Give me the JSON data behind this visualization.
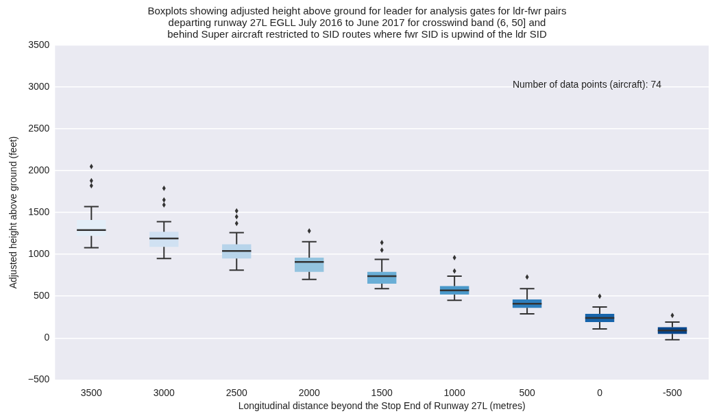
{
  "chart_data": {
    "type": "box",
    "title": "Boxplots showing adjusted height above ground for leader for analysis gates for ldr-fwr pairs\ndeparting runway 27L EGLL July 2016 to June 2017 for crosswind band (6, 50] and\nbehind Super aircraft restricted to SID routes where fwr SID is upwind of the ldr SID",
    "xlabel": "Longitudinal distance beyond the Stop End of Runway 27L (metres)",
    "ylabel": "Adjusted height above ground (feet)",
    "annotations": [
      "Number of data points (aircraft): 74"
    ],
    "categories": [
      "3500",
      "3000",
      "2500",
      "2000",
      "1500",
      "1000",
      "500",
      "0",
      "-500"
    ],
    "colors": [
      "#e3eef8",
      "#d0e1f2",
      "#b7d4ea",
      "#94c4df",
      "#6aaed6",
      "#4a98c9",
      "#2e7ebc",
      "#1764ab",
      "#08468b"
    ],
    "boxes": [
      {
        "low": 1080,
        "q1": 1220,
        "median": 1290,
        "q3": 1410,
        "high": 1570,
        "outliers": [
          1820,
          1880,
          2050
        ]
      },
      {
        "low": 950,
        "q1": 1090,
        "median": 1190,
        "q3": 1270,
        "high": 1390,
        "outliers": [
          1590,
          1650,
          1790
        ]
      },
      {
        "low": 810,
        "q1": 950,
        "median": 1040,
        "q3": 1120,
        "high": 1260,
        "outliers": [
          1370,
          1450,
          1520
        ]
      },
      {
        "low": 700,
        "q1": 790,
        "median": 910,
        "q3": 960,
        "high": 1150,
        "outliers": [
          1280
        ]
      },
      {
        "low": 590,
        "q1": 650,
        "median": 740,
        "q3": 790,
        "high": 940,
        "outliers": [
          1050,
          1140
        ]
      },
      {
        "low": 450,
        "q1": 520,
        "median": 570,
        "q3": 620,
        "high": 740,
        "outliers": [
          800,
          960
        ]
      },
      {
        "low": 290,
        "q1": 360,
        "median": 410,
        "q3": 460,
        "high": 590,
        "outliers": [
          730
        ]
      },
      {
        "low": 110,
        "q1": 190,
        "median": 240,
        "q3": 290,
        "high": 370,
        "outliers": [
          500
        ]
      },
      {
        "low": -20,
        "q1": 50,
        "median": 90,
        "q3": 130,
        "high": 190,
        "outliers": [
          270
        ]
      }
    ],
    "ylim": [
      -500,
      3500
    ],
    "yticks": [
      -500,
      0,
      500,
      1000,
      1500,
      2000,
      2500,
      3000,
      3500
    ],
    "grid": "y",
    "legend": false
  }
}
